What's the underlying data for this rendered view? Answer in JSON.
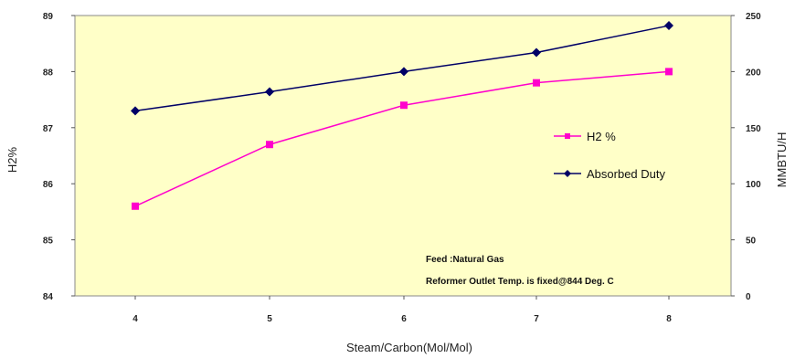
{
  "chart_data": {
    "type": "line",
    "categories": [
      "4",
      "5",
      "6",
      "7",
      "8"
    ],
    "xlabel": "Steam/Carbon(Mol/Mol)",
    "ylabel_left": "H2%",
    "ylabel_right": "MMBTU/H",
    "ylim_left": [
      84,
      89
    ],
    "yticks_left": [
      "84",
      "85",
      "86",
      "87",
      "88",
      "89"
    ],
    "ylim_right": [
      0,
      250
    ],
    "yticks_right": [
      "0",
      "50",
      "100",
      "150",
      "200",
      "250"
    ],
    "grid": false,
    "legend_position": "right",
    "series": [
      {
        "name": "H2 %",
        "axis": "left",
        "color": "#ff00cc",
        "marker": "square",
        "values": [
          85.6,
          86.7,
          87.4,
          87.8,
          88.0
        ]
      },
      {
        "name": "Absorbed Duty",
        "axis": "right",
        "color": "#000066",
        "marker": "diamond",
        "values": [
          165,
          182,
          200,
          217,
          241
        ]
      }
    ],
    "annotations": [
      "Feed :Natural Gas",
      "Reformer Outlet Temp. is fixed@844 Deg. C"
    ],
    "colors": {
      "plot_background": "#ffffc8",
      "page_background": "#ffffff"
    }
  }
}
